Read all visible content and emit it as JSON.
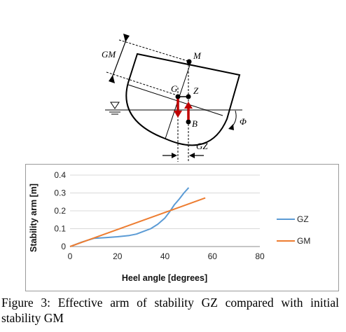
{
  "diagram": {
    "labels": {
      "gm": "GM",
      "m": "M",
      "g": "G",
      "z": "Z",
      "b": "B",
      "phi": "Φ",
      "gz": "GZ"
    },
    "colors": {
      "force_arrow": "#c00000",
      "hull": "#000000",
      "waterline": "#808080"
    }
  },
  "chart_data": {
    "type": "line",
    "xlabel": "Heel angle [degrees]",
    "ylabel": "Stability arm [m]",
    "xlim": [
      0,
      80
    ],
    "ylim": [
      0,
      0.4
    ],
    "x_ticks": [
      "0",
      "20",
      "40",
      "60",
      "80"
    ],
    "y_ticks": [
      "0",
      "0.1",
      "0.2",
      "0.3",
      "0.4"
    ],
    "grid": true,
    "legend_position": "right",
    "series": [
      {
        "name": "GZ",
        "color": "#5b9bd5",
        "x": [
          0,
          5,
          10,
          15,
          20,
          25,
          28,
          31,
          34,
          37,
          40,
          42,
          44,
          46,
          48,
          50
        ],
        "y": [
          0,
          0.025,
          0.046,
          0.05,
          0.055,
          0.062,
          0.07,
          0.085,
          0.1,
          0.125,
          0.16,
          0.195,
          0.235,
          0.265,
          0.3,
          0.33
        ]
      },
      {
        "name": "GM",
        "color": "#ed7d31",
        "x": [
          0,
          57
        ],
        "y": [
          0,
          0.272
        ]
      }
    ]
  },
  "caption": "Figure 3: Effective arm of stability GZ compared with initial stability GM"
}
